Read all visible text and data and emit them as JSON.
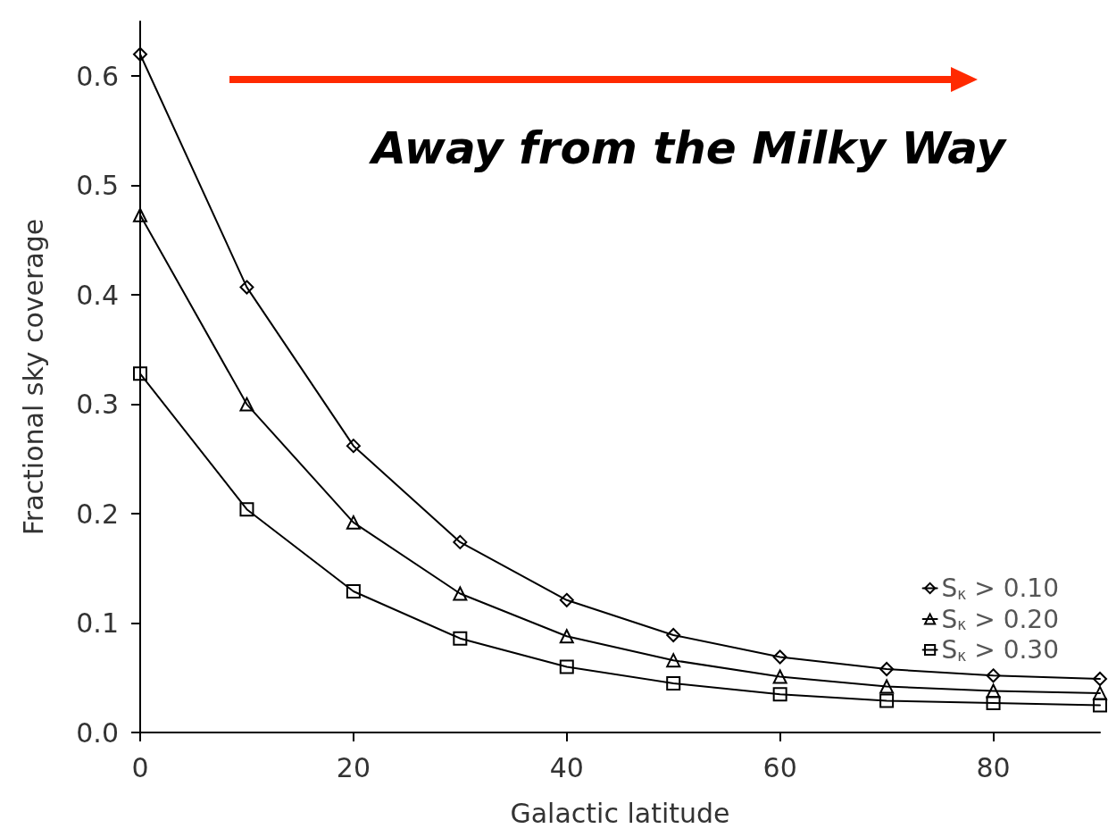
{
  "chart_data": {
    "type": "line",
    "xlabel": "Galactic latitude",
    "ylabel": "Fractional sky coverage",
    "x": [
      0,
      10,
      20,
      30,
      40,
      50,
      60,
      70,
      80,
      90
    ],
    "series": [
      {
        "name": "S$_{κ}$ > 0.10",
        "color": "#000000",
        "marker": "diamond",
        "values": [
          0.62,
          0.407,
          0.262,
          0.174,
          0.121,
          0.089,
          0.069,
          0.058,
          0.052,
          0.049
        ]
      },
      {
        "name": "S$_{κ}$ > 0.20",
        "color": "#000000",
        "marker": "triangle",
        "values": [
          0.473,
          0.3,
          0.192,
          0.127,
          0.088,
          0.066,
          0.051,
          0.042,
          0.038,
          0.036
        ]
      },
      {
        "name": "S$_{κ}$ > 0.30",
        "color": "#000000",
        "marker": "square",
        "values": [
          0.328,
          0.204,
          0.129,
          0.086,
          0.06,
          0.045,
          0.035,
          0.029,
          0.027,
          0.025
        ]
      }
    ],
    "xlim": [
      0,
      90
    ],
    "xticks": [
      0,
      20,
      40,
      60,
      80
    ],
    "ylim": [
      0,
      0.65
    ],
    "yticks": [
      {
        "value": 0,
        "label": "0.0"
      },
      0.1,
      0.2,
      0.3,
      0.4,
      0.5,
      0.6
    ],
    "grid": false,
    "legend": "bottom right",
    "line_style": "solid",
    "annotations": [
      "Away from the Milky Way"
    ]
  }
}
